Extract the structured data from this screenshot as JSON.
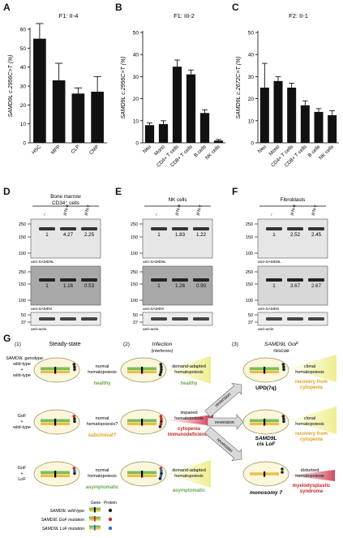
{
  "panels": {
    "A": "A",
    "B": "B",
    "C": "C",
    "D": "D",
    "E": "E",
    "F": "F",
    "G": "G"
  },
  "chart_data": [
    {
      "type": "bar",
      "title": "F1: II-4",
      "ylabel": "SAMD9L c.2956C>T (%)",
      "categories": [
        "HSC",
        "MPP",
        "CLP",
        "CMP"
      ],
      "values": [
        55,
        33,
        26,
        27
      ],
      "errors": [
        8,
        9,
        3,
        8
      ],
      "ylim": [
        0,
        60
      ],
      "yticks": [
        "0",
        "10",
        "20",
        "30",
        "40",
        "50",
        "60"
      ]
    },
    {
      "type": "bar",
      "title": "F1: III-2",
      "ylabel": "SAMD9L c.2956C>T (%)",
      "categories": [
        "Neu",
        "Mono",
        "CD4+ T cells",
        "CD8+ T cells",
        "B cells",
        "NK cells"
      ],
      "values": [
        8,
        8.5,
        34.5,
        31,
        13.5,
        1
      ],
      "errors": [
        1,
        1.5,
        3,
        2,
        1.5,
        0.5
      ],
      "ylim": [
        0,
        50
      ],
      "yticks": [
        "0",
        "10",
        "20",
        "30",
        "40",
        "50"
      ]
    },
    {
      "type": "bar",
      "title": "F2: II-1",
      "ylabel": "SAMD9L c.2672C>T (%)",
      "categories": [
        "Neu",
        "Mono",
        "CD4+ T cells",
        "CD8+ T cells",
        "B cells",
        "NK cells"
      ],
      "values": [
        25,
        28,
        25,
        17,
        14,
        12.5
      ],
      "errors": [
        11,
        2,
        2,
        2,
        1.5,
        2
      ],
      "ylim": [
        0,
        50
      ],
      "yticks": [
        "0",
        "10",
        "20",
        "30",
        "40",
        "50"
      ]
    }
  ],
  "blots": {
    "D": {
      "title_line1": "Bone marrow",
      "title_line2": "CD34⁺ cells",
      "lanes": [
        "–",
        "IFN-α",
        "IFN-γ"
      ],
      "top_values": [
        "1",
        "4.27",
        "2.25"
      ],
      "mid_values": [
        "1",
        "1.16",
        "0.53"
      ],
      "top_label": "anti-SAMD9L",
      "mid_label": "anti-SAMD9",
      "bot_label": "anti-actin"
    },
    "E": {
      "title_line1": "NK cells",
      "lanes": [
        "–",
        "IFN-α",
        "IFN-γ"
      ],
      "top_values": [
        "1",
        "1.83",
        "1.22"
      ],
      "mid_values": [
        "1",
        "1.26",
        "0.90"
      ],
      "top_label": "anti-SAMD9L",
      "mid_label": "anti-SAMD9",
      "bot_label": "anti-actin"
    },
    "F": {
      "title_line1": "Fibroblasts",
      "lanes": [
        "–",
        "IFN-α",
        "IFN-γ"
      ],
      "top_values": [
        "1",
        "2.52",
        "2.45"
      ],
      "mid_values": [
        "1",
        "3.67",
        "2.67"
      ],
      "top_label": "anti-SAMD9L",
      "mid_label": "anti-SAMD9",
      "bot_label": "anti-actin"
    },
    "markers_top": [
      "250",
      "150",
      "100"
    ],
    "markers_mid": [
      "250",
      "150",
      "100"
    ],
    "markers_bot": [
      "50",
      "37"
    ]
  },
  "schematic": {
    "col1_num": "(1)",
    "col1_title": "Steady-state",
    "col2_num": "(2)",
    "col2_title": "Infection",
    "col2_sub": "(interferons)",
    "col3_num": "(3)",
    "col3_title": "SAMD9L GoF",
    "col3_sub": "rescue",
    "genotype_label": "SAMD9L genotype",
    "row1_geno": [
      "wild-type",
      "+",
      "wild-type"
    ],
    "row2_geno": [
      "GoF",
      "+",
      "wild-type"
    ],
    "row3_geno": [
      "GoF",
      "+",
      "LoF"
    ],
    "r1c1_text": [
      "normal",
      "hematopoiesis"
    ],
    "r1c1_status": "healthy",
    "r1c2_text": [
      "demand-adapted",
      "hematopoiesis"
    ],
    "r1c2_status": "healthy",
    "r1c3_text": [
      "clonal",
      "hematopoiesis"
    ],
    "r1c3_event": "UPD(7q)",
    "r1c3_status": [
      "recovery from",
      "cytopenia"
    ],
    "r2c1_text": [
      "normal",
      "hematopoiesis?"
    ],
    "r2c1_status": "subclinical?",
    "r2c2_text": [
      "impaired",
      "hematopoiesis"
    ],
    "r2c2_status": [
      "cytopenia",
      "immunodeficiency"
    ],
    "r2c3_text": [
      "clonal",
      "hematopoiesis"
    ],
    "r2c3_event": [
      "SAMD9L",
      "cis LoF"
    ],
    "r2c3_status": [
      "recovery from",
      "cytopenia"
    ],
    "r3c1_text": [
      "normal",
      "hematopoiesis"
    ],
    "r3c1_status": "asymptomatic",
    "r3c2_text": [
      "demand-adapted",
      "hematopoiesis"
    ],
    "r3c2_status": "asymptomatic",
    "r3c3_text": [
      "disturbed",
      "hematopoiesis"
    ],
    "r3c3_event": "monosomy 7",
    "r3c3_status": [
      "myelodysplastic",
      "syndrome"
    ],
    "arrow_label": "reversion",
    "legend_header_gene": "Gene",
    "legend_header_protein": "Protein",
    "legend_items": [
      "SAMD9L wild-type",
      "SAMD9L GoF mutation",
      "SAMD9L LoF mutation"
    ],
    "colors": {
      "wt": "#222222",
      "gof": "#c62828",
      "lof": "#1e6fd9"
    }
  }
}
